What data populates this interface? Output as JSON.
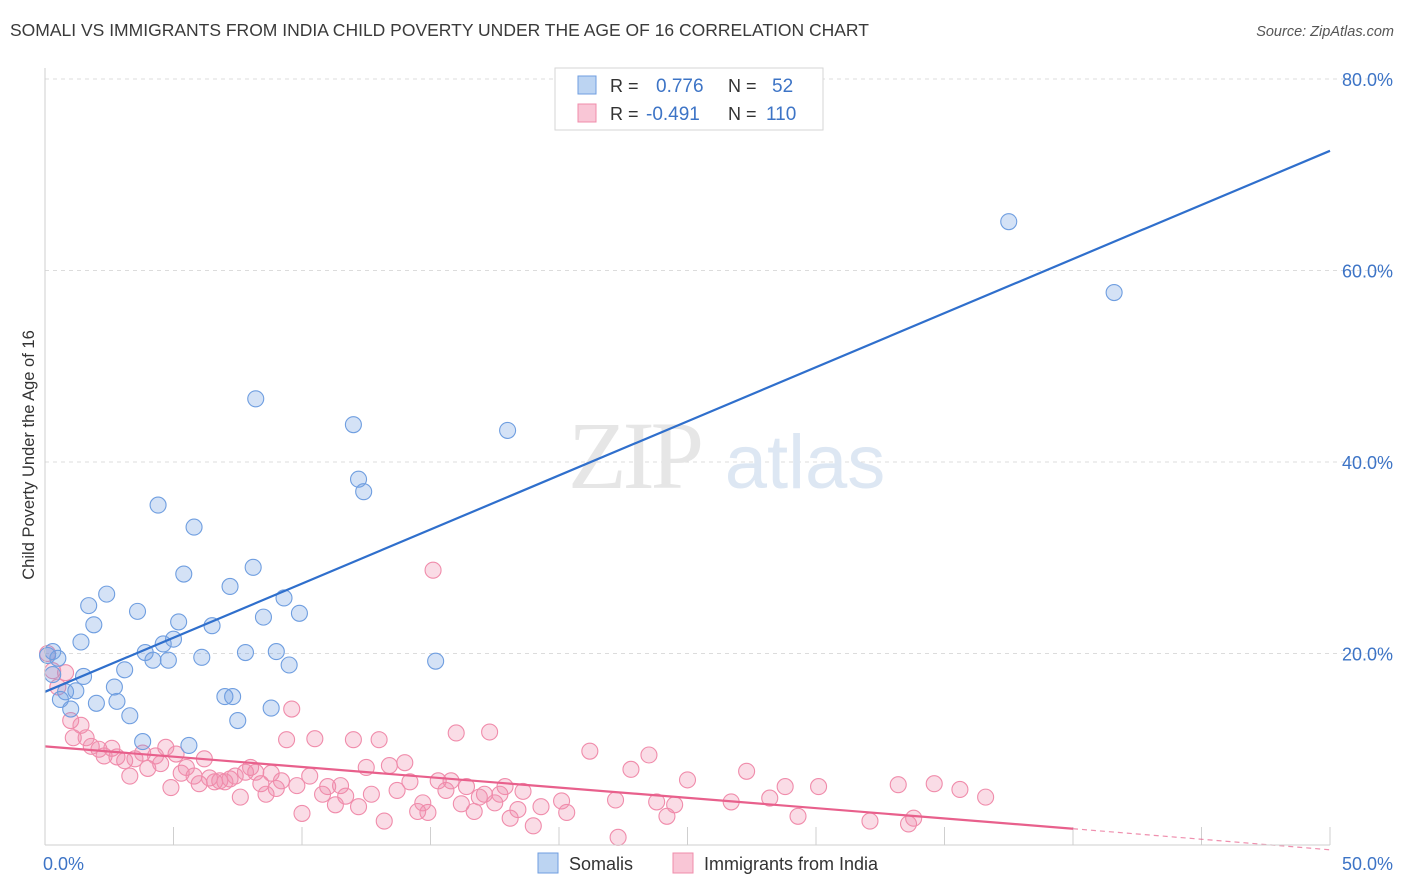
{
  "title": "SOMALI VS IMMIGRANTS FROM INDIA CHILD POVERTY UNDER THE AGE OF 16 CORRELATION CHART",
  "source": "Source: ZipAtlas.com",
  "watermark": {
    "zip": "ZIP",
    "atlas": "atlas"
  },
  "chart_data": {
    "type": "scatter",
    "ylabel": "Child Poverty Under the Age of 16",
    "xlim": [
      0,
      50
    ],
    "ylim": [
      0,
      80
    ],
    "x_tick_labels": [
      "0.0%",
      "50.0%"
    ],
    "y_ticks": [
      20,
      40,
      60,
      80
    ],
    "y_tick_labels": [
      "20.0%",
      "40.0%",
      "60.0%",
      "80.0%"
    ],
    "grid": true,
    "legend_position": "top-center",
    "series": [
      {
        "name": "Somalis",
        "color": "#6f9ee0",
        "line_color": "#2f6fcc",
        "stats": {
          "r_label": "R =",
          "r_value": "0.776",
          "n_label": "N =",
          "n_value": "52"
        },
        "trend": {
          "x": [
            0,
            50
          ],
          "y": [
            16.0,
            72.5
          ]
        },
        "points": [
          [
            0.1,
            19.8
          ],
          [
            0.3,
            20.2
          ],
          [
            0.5,
            19.5
          ],
          [
            0.3,
            17.8
          ],
          [
            0.6,
            15.2
          ],
          [
            0.8,
            16.0
          ],
          [
            1.0,
            14.2
          ],
          [
            1.2,
            16.1
          ],
          [
            1.5,
            17.6
          ],
          [
            1.7,
            25.0
          ],
          [
            1.9,
            23.0
          ],
          [
            2.0,
            14.8
          ],
          [
            2.4,
            26.2
          ],
          [
            2.7,
            16.5
          ],
          [
            2.8,
            15.0
          ],
          [
            3.1,
            18.3
          ],
          [
            3.3,
            13.5
          ],
          [
            3.6,
            24.4
          ],
          [
            3.8,
            10.8
          ],
          [
            3.9,
            20.1
          ],
          [
            4.2,
            19.3
          ],
          [
            4.4,
            35.5
          ],
          [
            4.6,
            21.0
          ],
          [
            4.8,
            19.3
          ],
          [
            5.0,
            21.5
          ],
          [
            5.2,
            23.3
          ],
          [
            5.4,
            28.3
          ],
          [
            5.6,
            10.4
          ],
          [
            5.8,
            33.2
          ],
          [
            6.1,
            19.6
          ],
          [
            6.5,
            22.9
          ],
          [
            7.0,
            15.5
          ],
          [
            7.2,
            27.0
          ],
          [
            7.3,
            15.5
          ],
          [
            7.5,
            13.0
          ],
          [
            7.8,
            20.1
          ],
          [
            8.1,
            29.0
          ],
          [
            8.2,
            46.6
          ],
          [
            8.5,
            23.8
          ],
          [
            8.8,
            14.3
          ],
          [
            9.0,
            20.2
          ],
          [
            9.3,
            25.8
          ],
          [
            9.5,
            18.8
          ],
          [
            9.9,
            24.2
          ],
          [
            12.0,
            43.9
          ],
          [
            12.2,
            38.2
          ],
          [
            12.4,
            36.9
          ],
          [
            15.2,
            19.2
          ],
          [
            18.0,
            43.3
          ],
          [
            37.5,
            65.1
          ],
          [
            41.6,
            57.7
          ],
          [
            1.4,
            21.2
          ]
        ]
      },
      {
        "name": "Immigrants from India",
        "color": "#f08cab",
        "line_color": "#e8608c",
        "stats": {
          "r_label": "R =",
          "r_value": "-0.491",
          "n_label": "N =",
          "n_value": "110"
        },
        "trend": {
          "x": [
            0,
            40
          ],
          "y": [
            10.3,
            1.7
          ],
          "dashed_x": [
            40,
            50
          ],
          "dashed_y": [
            1.7,
            -0.5
          ]
        },
        "points": [
          [
            0.1,
            20.0
          ],
          [
            0.3,
            18.2
          ],
          [
            0.5,
            16.5
          ],
          [
            0.8,
            18.0
          ],
          [
            1.0,
            13.0
          ],
          [
            1.1,
            11.2
          ],
          [
            1.4,
            12.5
          ],
          [
            1.6,
            11.2
          ],
          [
            1.8,
            10.3
          ],
          [
            2.1,
            10.0
          ],
          [
            2.3,
            9.3
          ],
          [
            2.6,
            10.1
          ],
          [
            2.8,
            9.2
          ],
          [
            3.1,
            8.8
          ],
          [
            3.3,
            7.2
          ],
          [
            3.5,
            9.0
          ],
          [
            3.8,
            9.6
          ],
          [
            4.0,
            8.0
          ],
          [
            4.3,
            9.3
          ],
          [
            4.5,
            8.5
          ],
          [
            4.7,
            10.2
          ],
          [
            4.9,
            6.0
          ],
          [
            5.1,
            9.5
          ],
          [
            5.3,
            7.5
          ],
          [
            5.5,
            8.1
          ],
          [
            5.8,
            7.2
          ],
          [
            6.0,
            6.4
          ],
          [
            6.2,
            9.0
          ],
          [
            6.4,
            7.0
          ],
          [
            6.6,
            6.6
          ],
          [
            6.8,
            6.7
          ],
          [
            7.0,
            6.6
          ],
          [
            7.2,
            6.9
          ],
          [
            7.4,
            7.2
          ],
          [
            7.6,
            5.0
          ],
          [
            7.8,
            7.6
          ],
          [
            8.0,
            8.1
          ],
          [
            8.2,
            7.6
          ],
          [
            8.4,
            6.4
          ],
          [
            8.6,
            5.3
          ],
          [
            8.8,
            7.5
          ],
          [
            9.0,
            5.9
          ],
          [
            9.2,
            6.7
          ],
          [
            9.4,
            11.0
          ],
          [
            9.6,
            14.2
          ],
          [
            9.8,
            6.2
          ],
          [
            10.0,
            3.3
          ],
          [
            10.3,
            7.2
          ],
          [
            10.5,
            11.1
          ],
          [
            10.8,
            5.3
          ],
          [
            11.0,
            6.1
          ],
          [
            11.3,
            4.2
          ],
          [
            11.5,
            6.2
          ],
          [
            11.7,
            5.1
          ],
          [
            12.0,
            11.0
          ],
          [
            12.2,
            4.0
          ],
          [
            12.5,
            8.1
          ],
          [
            12.7,
            5.3
          ],
          [
            13.0,
            11.0
          ],
          [
            13.2,
            2.5
          ],
          [
            13.4,
            8.3
          ],
          [
            13.7,
            5.7
          ],
          [
            14.0,
            8.6
          ],
          [
            14.2,
            6.6
          ],
          [
            14.5,
            3.5
          ],
          [
            14.7,
            4.4
          ],
          [
            14.9,
            3.4
          ],
          [
            15.1,
            28.7
          ],
          [
            15.3,
            6.7
          ],
          [
            15.6,
            5.7
          ],
          [
            15.8,
            6.7
          ],
          [
            16.0,
            11.7
          ],
          [
            16.2,
            4.3
          ],
          [
            16.4,
            6.1
          ],
          [
            16.7,
            3.5
          ],
          [
            16.9,
            5.0
          ],
          [
            17.1,
            5.3
          ],
          [
            17.3,
            11.8
          ],
          [
            17.5,
            4.4
          ],
          [
            17.7,
            5.3
          ],
          [
            17.9,
            6.1
          ],
          [
            18.1,
            2.8
          ],
          [
            18.4,
            3.7
          ],
          [
            18.6,
            5.6
          ],
          [
            19.0,
            2.0
          ],
          [
            19.3,
            4.0
          ],
          [
            20.1,
            4.6
          ],
          [
            20.3,
            3.4
          ],
          [
            21.2,
            9.8
          ],
          [
            22.2,
            4.7
          ],
          [
            22.3,
            0.8
          ],
          [
            22.8,
            7.9
          ],
          [
            23.5,
            9.4
          ],
          [
            23.8,
            4.5
          ],
          [
            24.2,
            3.0
          ],
          [
            24.5,
            4.2
          ],
          [
            25.0,
            6.8
          ],
          [
            26.7,
            4.5
          ],
          [
            27.3,
            7.7
          ],
          [
            28.2,
            4.9
          ],
          [
            28.8,
            6.1
          ],
          [
            29.3,
            3.0
          ],
          [
            30.1,
            6.1
          ],
          [
            32.1,
            2.5
          ],
          [
            33.2,
            6.3
          ],
          [
            33.6,
            2.2
          ],
          [
            33.8,
            2.8
          ],
          [
            34.6,
            6.4
          ],
          [
            35.6,
            5.8
          ],
          [
            36.6,
            5.0
          ]
        ]
      }
    ]
  }
}
